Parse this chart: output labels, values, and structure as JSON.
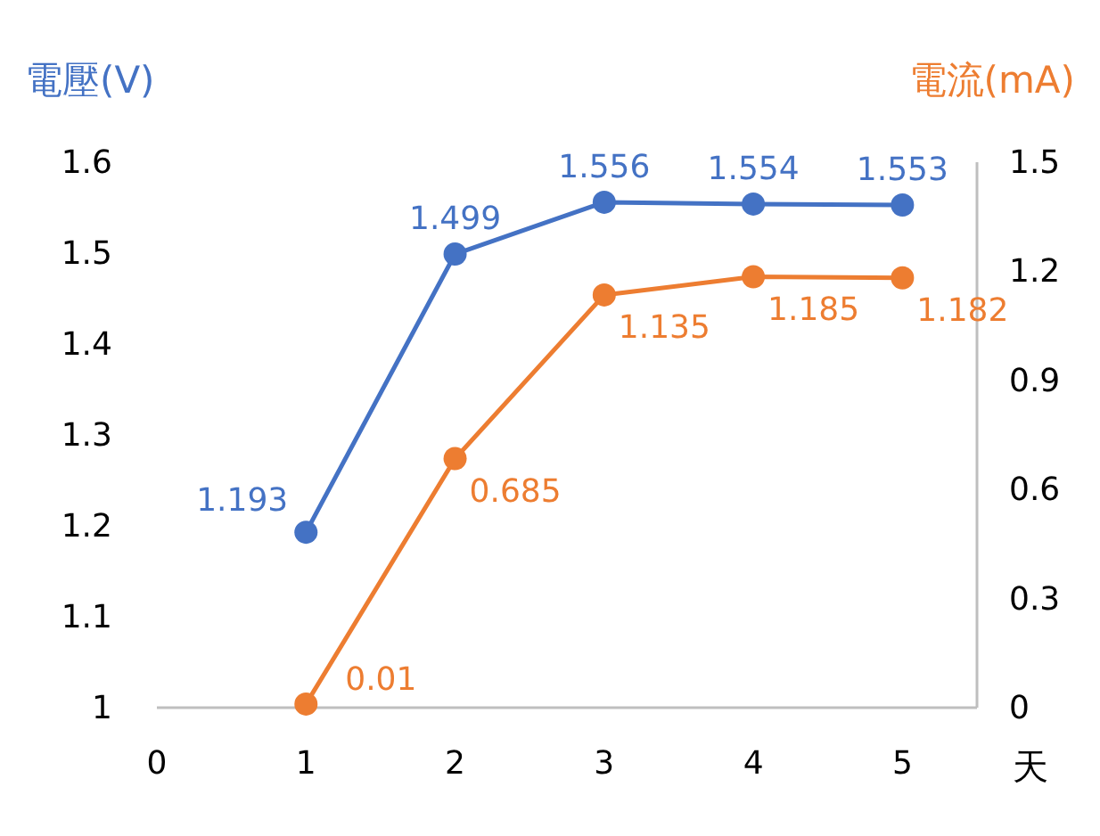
{
  "chart_data": {
    "type": "line",
    "xlabel": "天",
    "ylabel": "電壓(V)",
    "y2label": "電流(mA)",
    "x": [
      1,
      2,
      3,
      4,
      5
    ],
    "series": [
      {
        "color": "#4472c4",
        "values": [
          1.193,
          1.499,
          1.556,
          1.554,
          1.553
        ]
      },
      {
        "color": "#ed7d31",
        "values": [
          0.01,
          0.685,
          1.135,
          1.185,
          1.182
        ],
        "axis": "y2"
      }
    ],
    "xlim": [
      0,
      5.5
    ],
    "xticks": [
      0,
      1,
      2,
      3,
      4,
      5
    ],
    "ylim": [
      1,
      1.6
    ],
    "yticks": [
      1,
      1.1,
      1.2,
      1.3,
      1.4,
      1.5,
      1.6
    ],
    "y2lim": [
      0,
      1.5
    ],
    "y2ticks": [
      0,
      0.3,
      0.6,
      0.9,
      1.2,
      1.5
    ],
    "data_labels": true,
    "marker": "circle"
  }
}
